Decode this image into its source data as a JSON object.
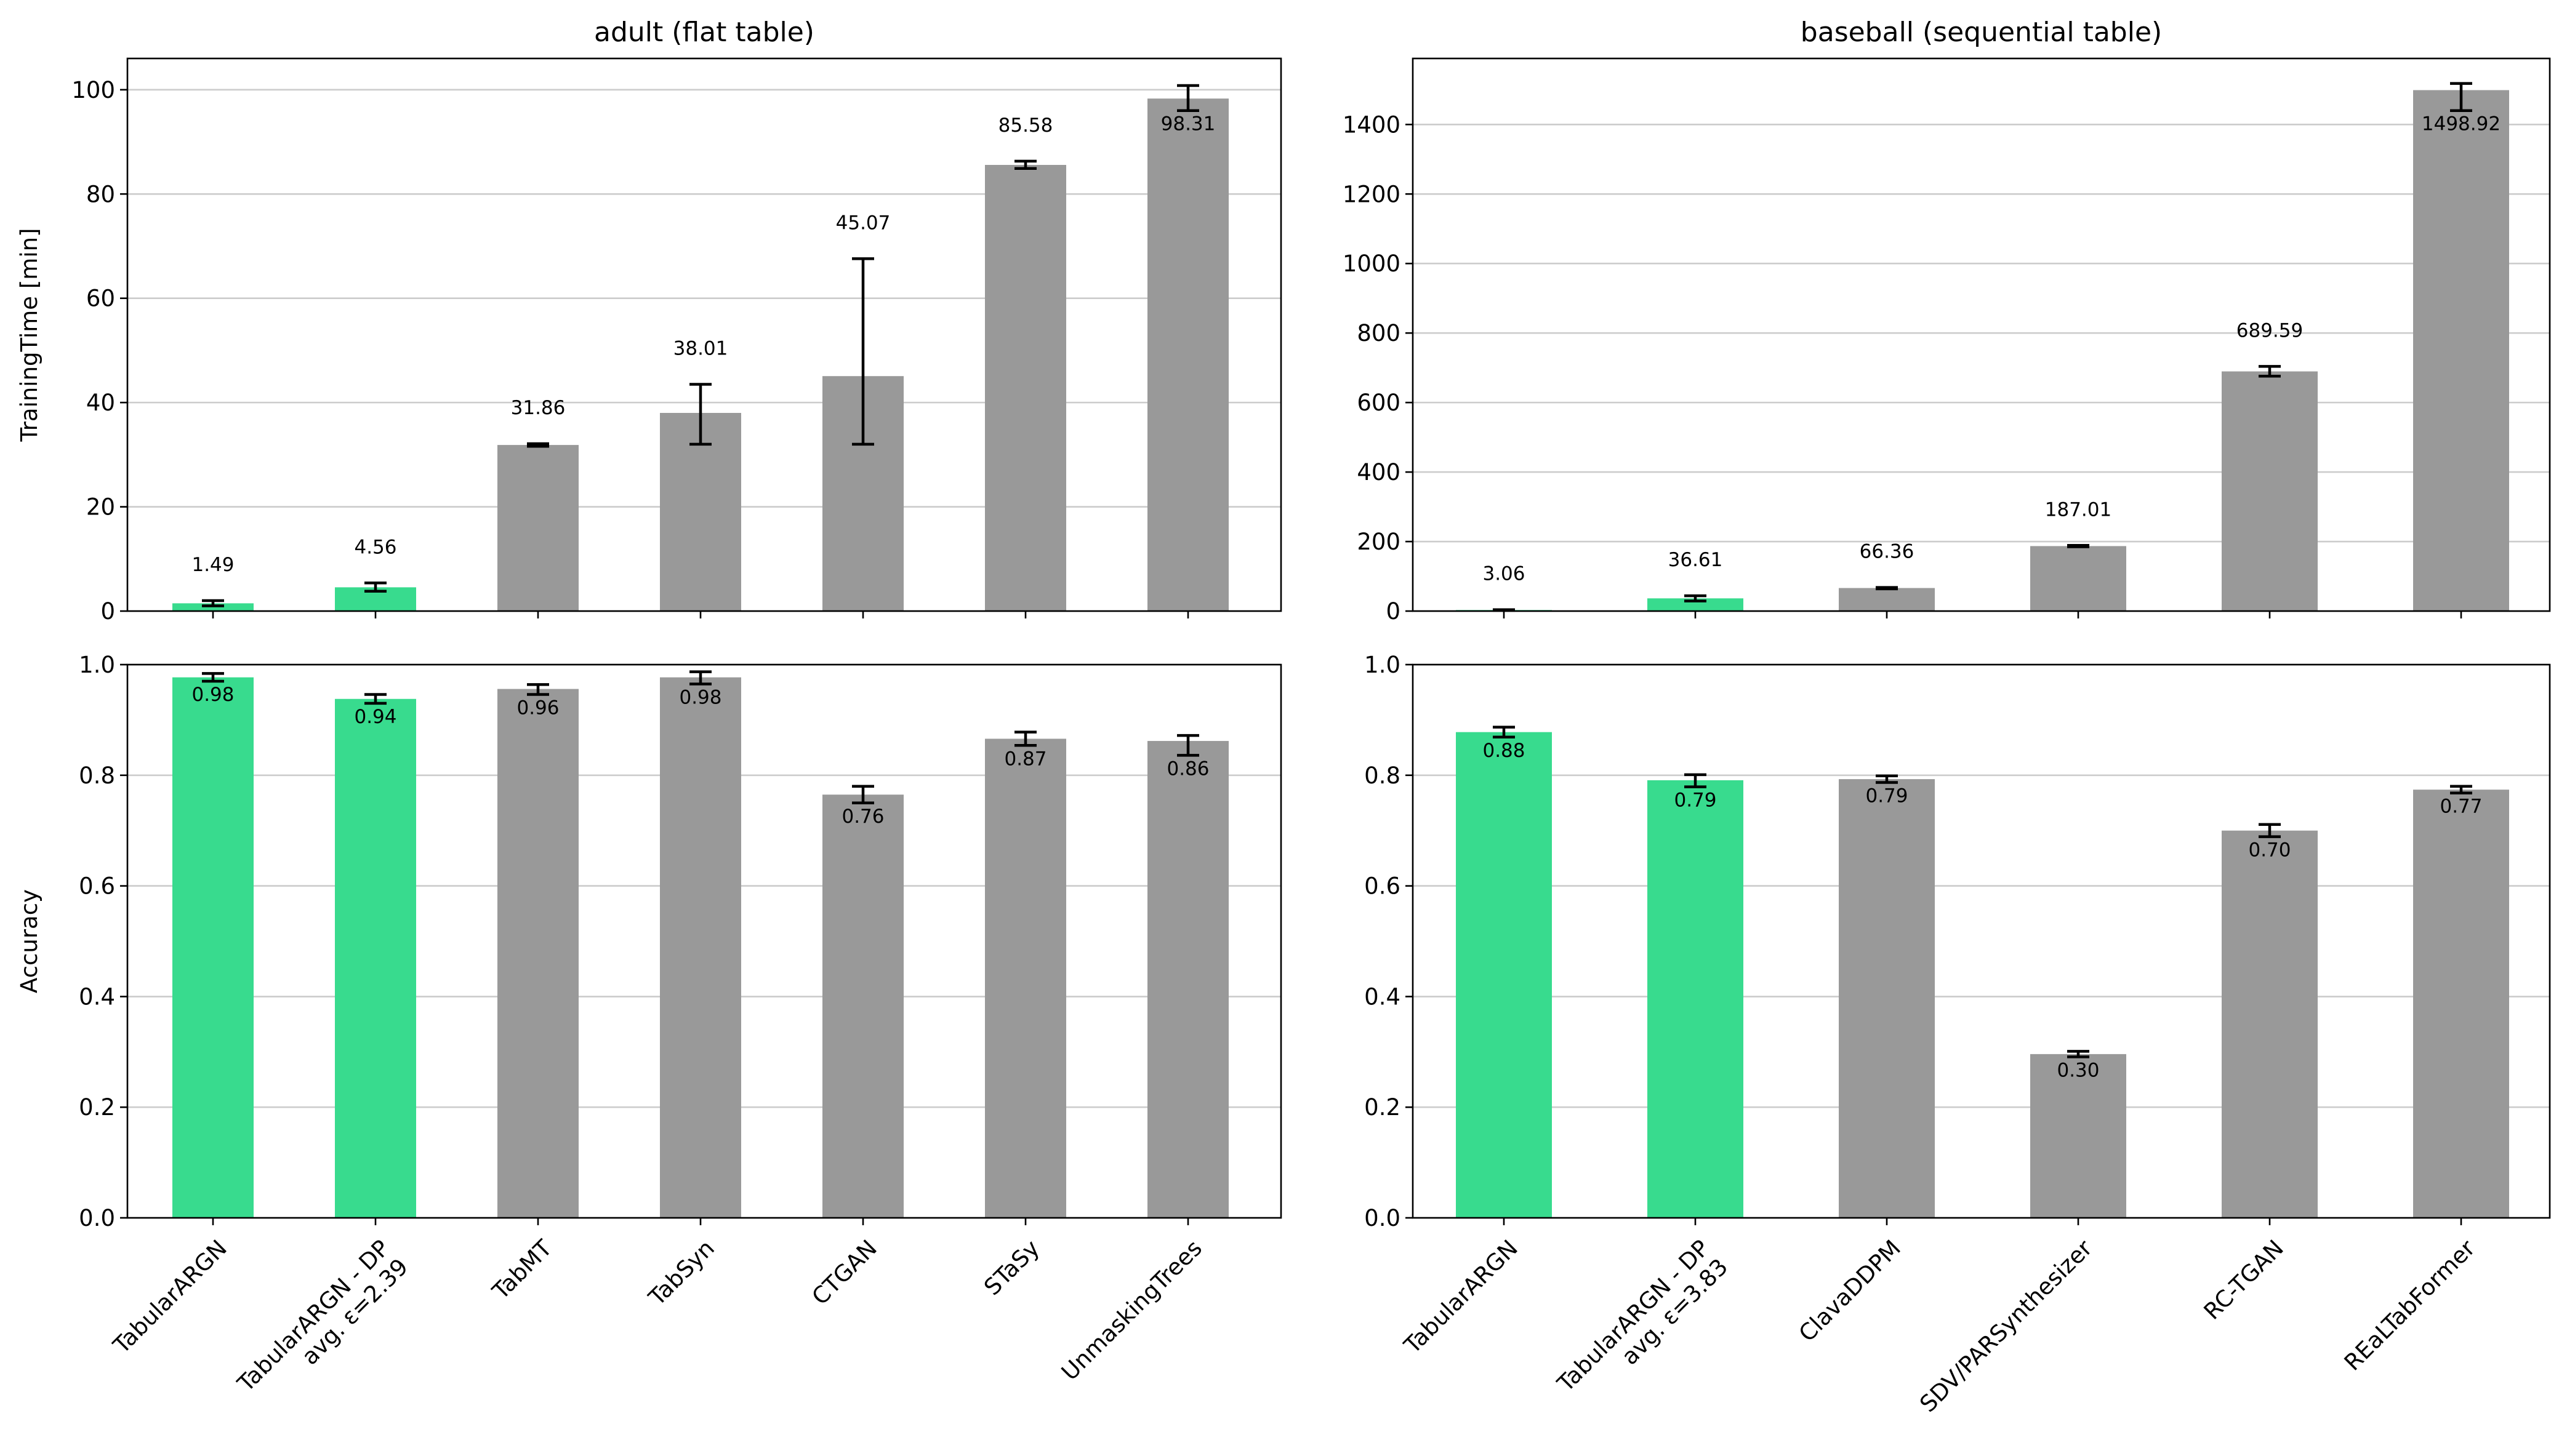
{
  "colors": {
    "highlight": "#38db8e",
    "default": "#999999"
  },
  "panels": [
    {
      "id": "adult-time",
      "chart_data": {
        "type": "bar",
        "title": "adult (flat table)",
        "ylabel": "TrainingTime [min]",
        "ylim": [
          0,
          106
        ],
        "yticks": [
          0,
          20,
          40,
          60,
          80,
          100
        ],
        "categories": [
          "TabularARGN",
          "TabularARGN - DP\navg. ε=2.39",
          "TabMT",
          "TabSyn",
          "CTGAN",
          "STaSy",
          "UnmaskingTrees"
        ],
        "values": [
          1.49,
          4.56,
          31.86,
          38.01,
          45.07,
          85.58,
          98.31
        ],
        "error_low": [
          1.0,
          3.8,
          31.6,
          32.0,
          32.0,
          84.9,
          96.0
        ],
        "error_high": [
          2.0,
          5.4,
          32.1,
          43.5,
          67.6,
          86.3,
          100.8
        ],
        "labels": [
          "1.49",
          "4.56",
          "31.86",
          "38.01",
          "45.07",
          "85.58",
          "98.31"
        ],
        "label_position": [
          "above",
          "above",
          "above",
          "above",
          "above",
          "above",
          "inside"
        ],
        "highlight": [
          true,
          true,
          false,
          false,
          false,
          false,
          false
        ]
      }
    },
    {
      "id": "baseball-time",
      "chart_data": {
        "type": "bar",
        "title": "baseball (sequential table)",
        "ylabel": "",
        "ylim": [
          0,
          1590
        ],
        "yticks": [
          0,
          200,
          400,
          600,
          800,
          1000,
          1200,
          1400
        ],
        "categories": [
          "TabularARGN",
          "TabularARGN - DP\navg. ε=3.83",
          "ClavaDDPM",
          "SDV/PARSynthesizer",
          "RC-TGAN",
          "REaLTabFormer"
        ],
        "values": [
          3.06,
          36.61,
          66.36,
          187.01,
          689.59,
          1498.92
        ],
        "error_low": [
          2.0,
          29.0,
          64.0,
          185.0,
          676.0,
          1440.0
        ],
        "error_high": [
          4.0,
          44.0,
          68.0,
          189.0,
          704.0,
          1518.0
        ],
        "labels": [
          "3.06",
          "36.61",
          "66.36",
          "187.01",
          "689.59",
          "1498.92"
        ],
        "label_position": [
          "above",
          "above",
          "above",
          "above",
          "above",
          "inside"
        ],
        "highlight": [
          true,
          true,
          false,
          false,
          false,
          false
        ]
      }
    },
    {
      "id": "adult-accuracy",
      "chart_data": {
        "type": "bar",
        "title": "",
        "ylabel": "Accuracy",
        "ylim": [
          0,
          1.0
        ],
        "yticks": [
          0.0,
          0.2,
          0.4,
          0.6,
          0.8,
          1.0
        ],
        "categories": [
          "TabularARGN",
          "TabularARGN - DP\navg. ε=2.39",
          "TabMT",
          "TabSyn",
          "CTGAN",
          "STaSy",
          "UnmaskingTrees"
        ],
        "values": [
          0.977,
          0.938,
          0.956,
          0.977,
          0.765,
          0.866,
          0.862
        ],
        "error_low": [
          0.97,
          0.93,
          0.946,
          0.965,
          0.75,
          0.854,
          0.836
        ],
        "error_high": [
          0.984,
          0.946,
          0.964,
          0.987,
          0.78,
          0.878,
          0.872
        ],
        "labels": [
          "0.98",
          "0.94",
          "0.96",
          "0.98",
          "0.76",
          "0.87",
          "0.86"
        ],
        "label_position": [
          "inside",
          "inside",
          "inside",
          "inside",
          "inside",
          "inside",
          "inside"
        ],
        "highlight": [
          true,
          true,
          false,
          false,
          false,
          false,
          false
        ]
      }
    },
    {
      "id": "baseball-accuracy",
      "chart_data": {
        "type": "bar",
        "title": "",
        "ylabel": "",
        "ylim": [
          0,
          1.0
        ],
        "yticks": [
          0.0,
          0.2,
          0.4,
          0.6,
          0.8,
          1.0
        ],
        "categories": [
          "TabularARGN",
          "TabularARGN - DP\navg. ε=3.83",
          "ClavaDDPM",
          "SDV/PARSynthesizer",
          "RC-TGAN",
          "REaLTabFormer"
        ],
        "values": [
          0.878,
          0.791,
          0.793,
          0.296,
          0.7,
          0.774
        ],
        "error_low": [
          0.869,
          0.779,
          0.787,
          0.291,
          0.689,
          0.768
        ],
        "error_high": [
          0.887,
          0.801,
          0.799,
          0.301,
          0.711,
          0.78
        ],
        "labels": [
          "0.88",
          "0.79",
          "0.79",
          "0.30",
          "0.70",
          "0.77"
        ],
        "label_position": [
          "inside",
          "inside",
          "inside",
          "inside",
          "inside",
          "inside"
        ],
        "highlight": [
          true,
          true,
          false,
          false,
          false,
          false
        ]
      }
    }
  ]
}
